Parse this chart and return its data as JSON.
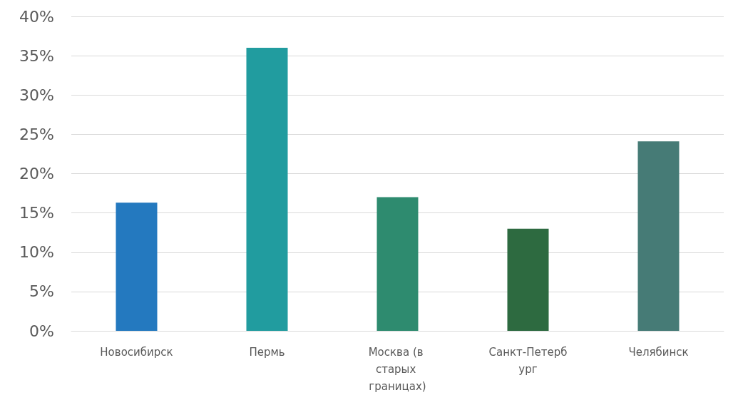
{
  "chart_data": {
    "type": "bar",
    "categories": [
      "Новосибирск",
      "Пермь",
      "Москва (в старых границах)",
      "Санкт-Петербург",
      "Челябинск"
    ],
    "values": [
      16.3,
      36.0,
      17.0,
      13.0,
      24.1
    ],
    "colors": [
      "#2479bf",
      "#219c9f",
      "#2e8b6f",
      "#2d6a40",
      "#467b76"
    ],
    "ylim": [
      0,
      40
    ],
    "yticks": [
      {
        "value": 0,
        "label": "0%"
      },
      {
        "value": 5,
        "label": "5%"
      },
      {
        "value": 10,
        "label": "10%"
      },
      {
        "value": 15,
        "label": "15%"
      },
      {
        "value": 20,
        "label": "20%"
      },
      {
        "value": 25,
        "label": "25%"
      },
      {
        "value": 30,
        "label": "30%"
      },
      {
        "value": 35,
        "label": "35%"
      },
      {
        "value": 40,
        "label": "40%"
      }
    ],
    "grid": "y"
  }
}
